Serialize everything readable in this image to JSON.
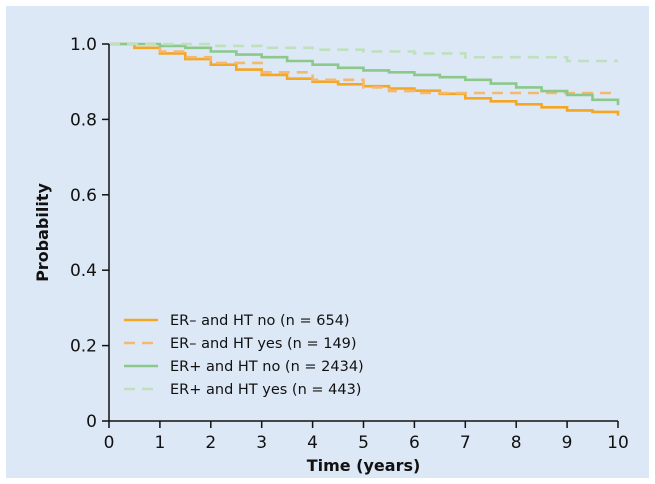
{
  "chart_data": {
    "type": "line",
    "title": "",
    "xlabel": "Time (years)",
    "ylabel": "Probability",
    "xlim": [
      0,
      10
    ],
    "ylim": [
      0,
      1.0
    ],
    "xticks": [
      0,
      1,
      2,
      3,
      4,
      5,
      6,
      7,
      8,
      9,
      10
    ],
    "yticks": [
      0,
      0.2,
      0.4,
      0.6,
      0.8,
      1.0
    ],
    "xtick_labels": [
      "0",
      "1",
      "2",
      "3",
      "4",
      "5",
      "6",
      "7",
      "8",
      "9",
      "10"
    ],
    "ytick_labels": [
      "0",
      "0.2",
      "0.4",
      "0.6",
      "0.8",
      "1.0"
    ],
    "grid": false,
    "legend_position": "bottom-left",
    "series": [
      {
        "name": "ER– and HT no (n = 654)",
        "color": "#f5a623",
        "dash": "solid",
        "x": [
          0,
          0.5,
          1,
          1.5,
          2,
          2.5,
          3,
          3.5,
          4,
          4.5,
          5,
          5.5,
          6,
          6.5,
          7,
          7.5,
          8,
          8.5,
          9,
          9.5,
          10
        ],
        "y": [
          1.0,
          0.99,
          0.975,
          0.96,
          0.945,
          0.932,
          0.918,
          0.908,
          0.9,
          0.893,
          0.888,
          0.882,
          0.876,
          0.868,
          0.856,
          0.848,
          0.84,
          0.832,
          0.824,
          0.82,
          0.81
        ]
      },
      {
        "name": "ER– and HT yes (n = 149)",
        "color": "#f5b870",
        "dash": "dashed",
        "x": [
          0,
          1,
          1.5,
          2,
          3,
          4,
          5,
          5.5,
          6,
          7,
          8,
          9,
          10
        ],
        "y": [
          1.0,
          0.98,
          0.965,
          0.95,
          0.925,
          0.905,
          0.885,
          0.875,
          0.87,
          0.87,
          0.87,
          0.87,
          0.87
        ]
      },
      {
        "name": "ER+ and HT no (n = 2434)",
        "color": "#8cc88a",
        "dash": "solid",
        "x": [
          0,
          1,
          1.5,
          2,
          2.5,
          3,
          3.5,
          4,
          4.5,
          5,
          5.5,
          6,
          6.5,
          7,
          7.5,
          8,
          8.5,
          9,
          9.5,
          10
        ],
        "y": [
          1.0,
          0.995,
          0.99,
          0.98,
          0.972,
          0.965,
          0.955,
          0.945,
          0.937,
          0.93,
          0.925,
          0.918,
          0.912,
          0.905,
          0.895,
          0.885,
          0.875,
          0.865,
          0.852,
          0.838
        ]
      },
      {
        "name": "ER+ and HT yes (n = 443)",
        "color": "#bfe0bd",
        "dash": "dashed",
        "x": [
          0,
          1,
          2,
          3,
          4,
          5,
          6,
          6.9,
          7,
          8,
          8.9,
          9,
          10
        ],
        "y": [
          1.0,
          1.0,
          0.995,
          0.99,
          0.985,
          0.98,
          0.975,
          0.975,
          0.965,
          0.965,
          0.965,
          0.955,
          0.955
        ]
      }
    ]
  }
}
